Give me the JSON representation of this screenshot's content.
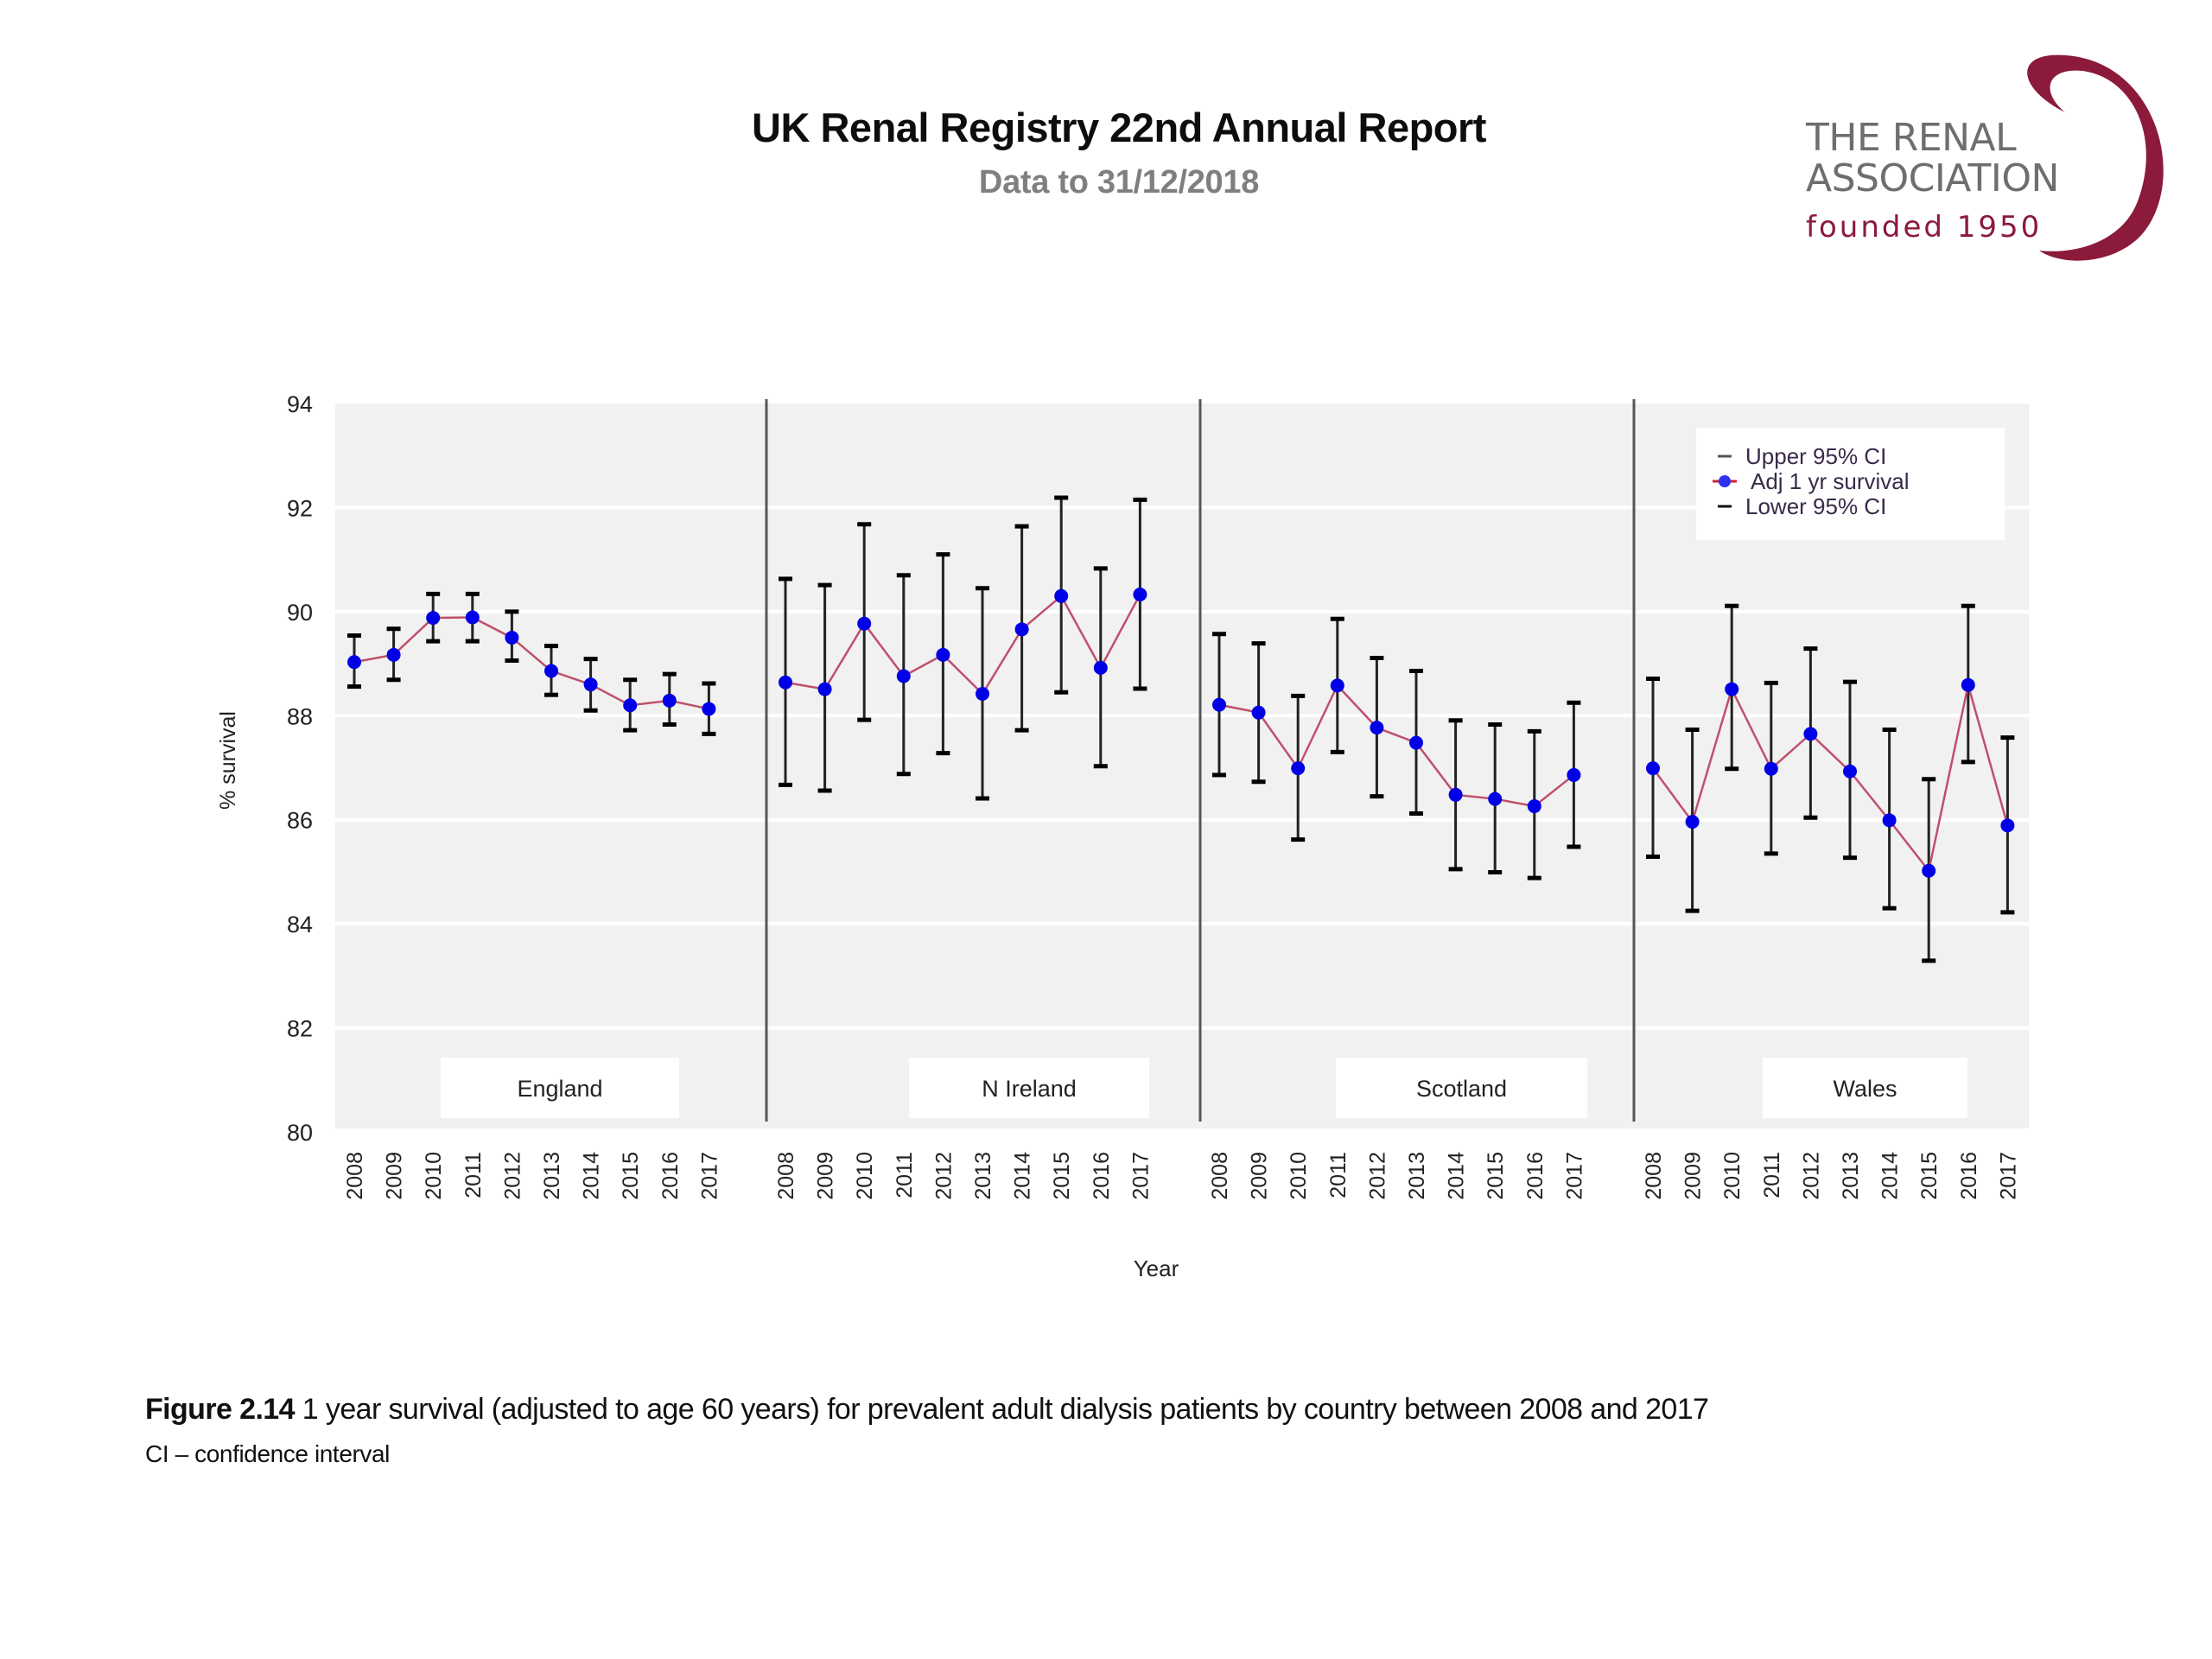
{
  "header": {
    "title": "UK Renal Registry 22nd Annual Report",
    "subtitle": "Data to 31/12/2018"
  },
  "logo": {
    "line1": "THE RENAL",
    "line2": "ASSOCIATION",
    "line3": "founded 1950",
    "text_color": "#6d6e70",
    "brand_color": "#8b1a3b"
  },
  "caption": {
    "figure_label": "Figure 2.14",
    "text": " 1 year survival (adjusted to age 60 years) for prevalent adult dialysis patients by country between 2008 and 2017",
    "footnote": "CI – confidence interval"
  },
  "colors": {
    "panel_background": "#f1f1f1",
    "gridline": "#ffffff",
    "point": "#0000e6",
    "line": "#c0506b",
    "error_bar": "#000000",
    "divider": "#555555"
  },
  "chart_data": {
    "type": "line",
    "title": "",
    "xlabel": "Year",
    "ylabel": "% survival",
    "ylim": [
      80,
      94
    ],
    "yticks": [
      80,
      82,
      84,
      86,
      88,
      90,
      92,
      94
    ],
    "grid": true,
    "legend": {
      "position": "top-right",
      "entries": [
        "Upper 95% CI",
        "Adj 1 yr survival",
        "Lower 95% CI"
      ]
    },
    "x": [
      "2008",
      "2009",
      "2010",
      "2011",
      "2012",
      "2013",
      "2014",
      "2015",
      "2016",
      "2017"
    ],
    "panels": [
      {
        "name": "England",
        "survival": [
          89.03,
          89.17,
          89.88,
          89.89,
          89.5,
          88.86,
          88.6,
          88.2,
          88.29,
          88.13
        ],
        "upper_ci": [
          89.54,
          89.67,
          90.34,
          90.34,
          90.0,
          89.34,
          89.09,
          88.69,
          88.8,
          88.62
        ],
        "lower_ci": [
          88.56,
          88.69,
          89.43,
          89.43,
          89.06,
          88.4,
          88.1,
          87.72,
          87.83,
          87.65
        ]
      },
      {
        "name": "N Ireland",
        "survival": [
          88.64,
          88.51,
          89.77,
          88.76,
          89.17,
          88.42,
          89.66,
          90.3,
          88.92,
          90.33
        ],
        "upper_ci": [
          90.63,
          90.51,
          91.68,
          90.7,
          91.1,
          90.45,
          91.64,
          92.19,
          90.83,
          92.15
        ],
        "lower_ci": [
          86.67,
          86.56,
          87.92,
          86.88,
          87.28,
          86.41,
          87.72,
          88.45,
          87.03,
          88.52
        ]
      },
      {
        "name": "Scotland",
        "survival": [
          88.21,
          88.06,
          86.99,
          88.58,
          87.77,
          87.48,
          86.48,
          86.4,
          86.26,
          86.86
        ],
        "upper_ci": [
          89.57,
          89.39,
          88.38,
          89.86,
          89.11,
          88.86,
          87.91,
          87.83,
          87.7,
          88.25
        ],
        "lower_ci": [
          86.86,
          86.73,
          85.62,
          87.3,
          86.45,
          86.12,
          85.05,
          84.99,
          84.88,
          85.48
        ]
      },
      {
        "name": "Wales",
        "survival": [
          86.99,
          85.96,
          88.51,
          86.98,
          87.65,
          86.93,
          85.99,
          85.02,
          88.59,
          85.89
        ],
        "upper_ci": [
          88.71,
          87.73,
          90.11,
          88.63,
          89.29,
          88.65,
          87.73,
          86.78,
          90.11,
          87.58
        ],
        "lower_ci": [
          85.29,
          84.25,
          86.98,
          85.35,
          86.04,
          85.27,
          84.3,
          83.29,
          87.11,
          84.22
        ]
      }
    ]
  }
}
